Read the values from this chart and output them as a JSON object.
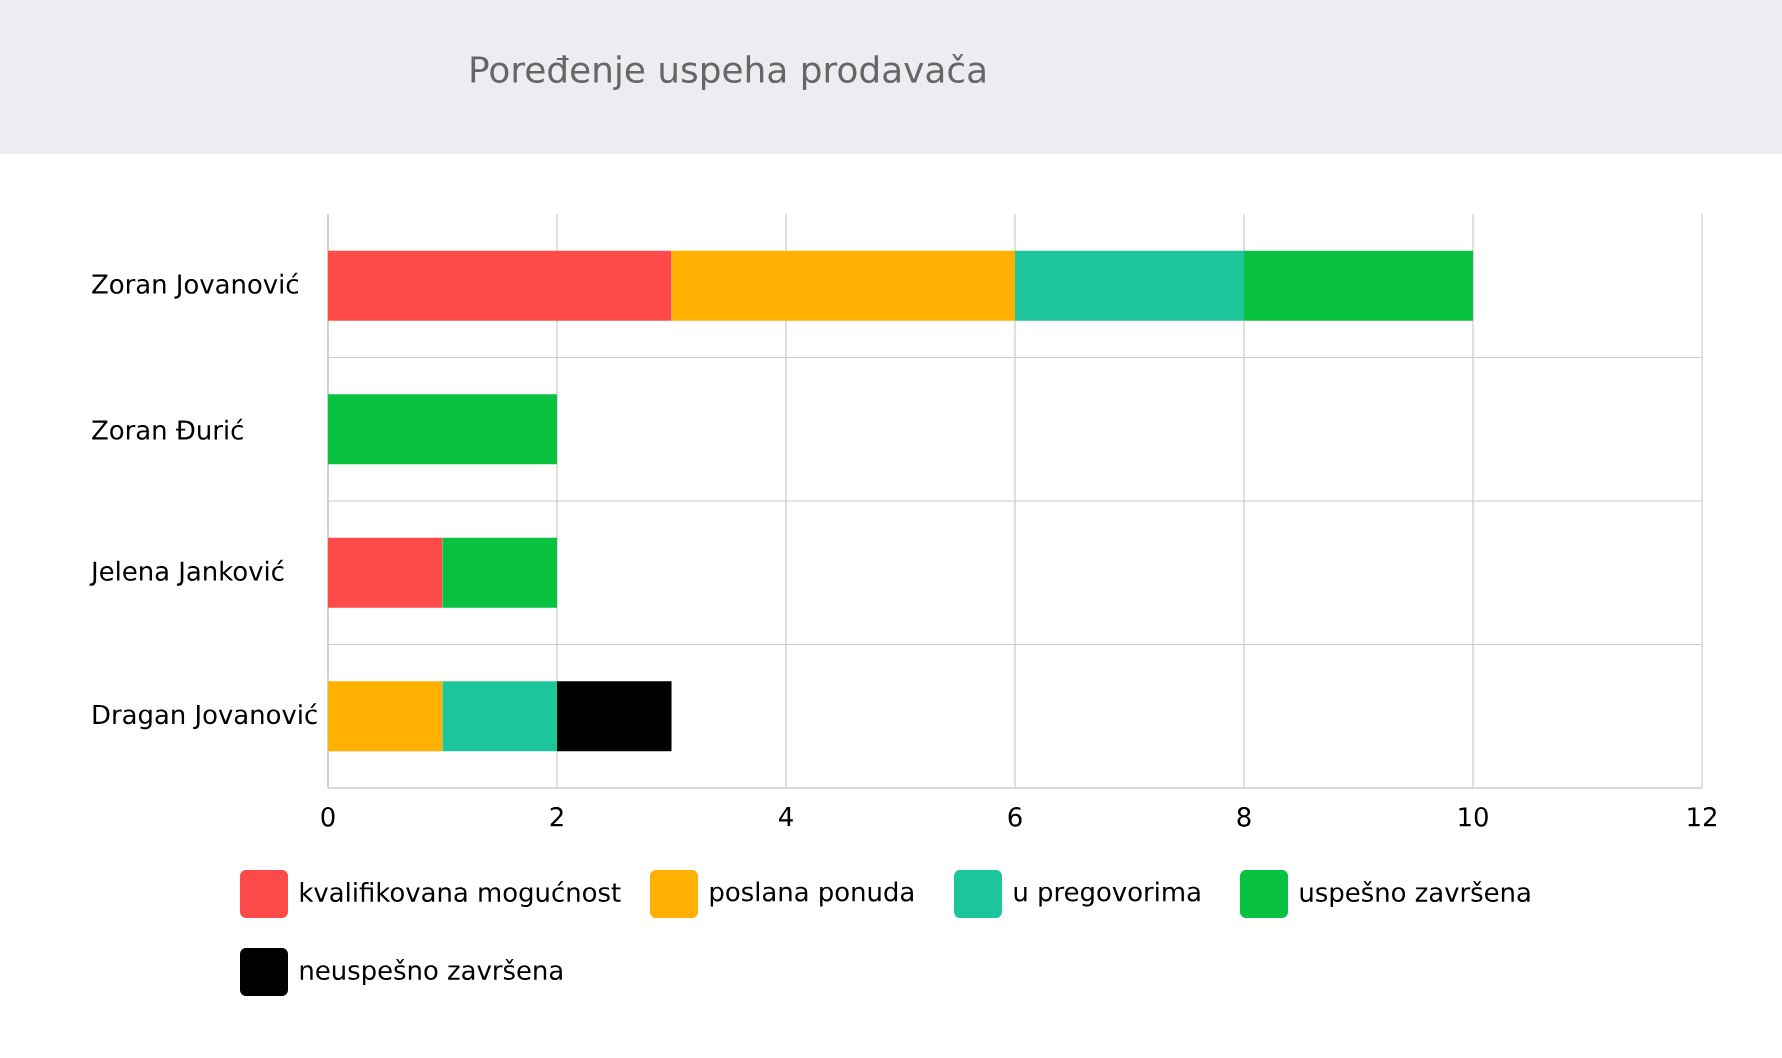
{
  "chart_data": {
    "type": "bar",
    "title": "Poređenje uspeha prodavača",
    "orientation": "horizontal",
    "stacked": true,
    "categories": [
      "Zoran Jovanović",
      "Zoran Đurić",
      "Jelena Janković",
      "Dragan Jovanović"
    ],
    "series": [
      {
        "name": "kvalifikovana mogućnost",
        "color": "#ff4a4a",
        "values": [
          3,
          null,
          1,
          null
        ]
      },
      {
        "name": "poslana ponuda",
        "color": "#ffb000",
        "values": [
          3,
          null,
          null,
          1
        ]
      },
      {
        "name": "u pregovorima",
        "color": "#1cc69a",
        "values": [
          2,
          null,
          null,
          1
        ]
      },
      {
        "name": "uspešno završena",
        "color": "#08c240",
        "values": [
          2,
          2,
          1,
          null
        ]
      },
      {
        "name": "neuspešno završena",
        "color": "#000000",
        "values": [
          null,
          null,
          null,
          1
        ]
      }
    ],
    "xlim": [
      0,
      12
    ],
    "xticks": [
      0,
      2,
      4,
      6,
      8,
      10,
      12
    ],
    "grid": "x",
    "legend": "bottom"
  }
}
